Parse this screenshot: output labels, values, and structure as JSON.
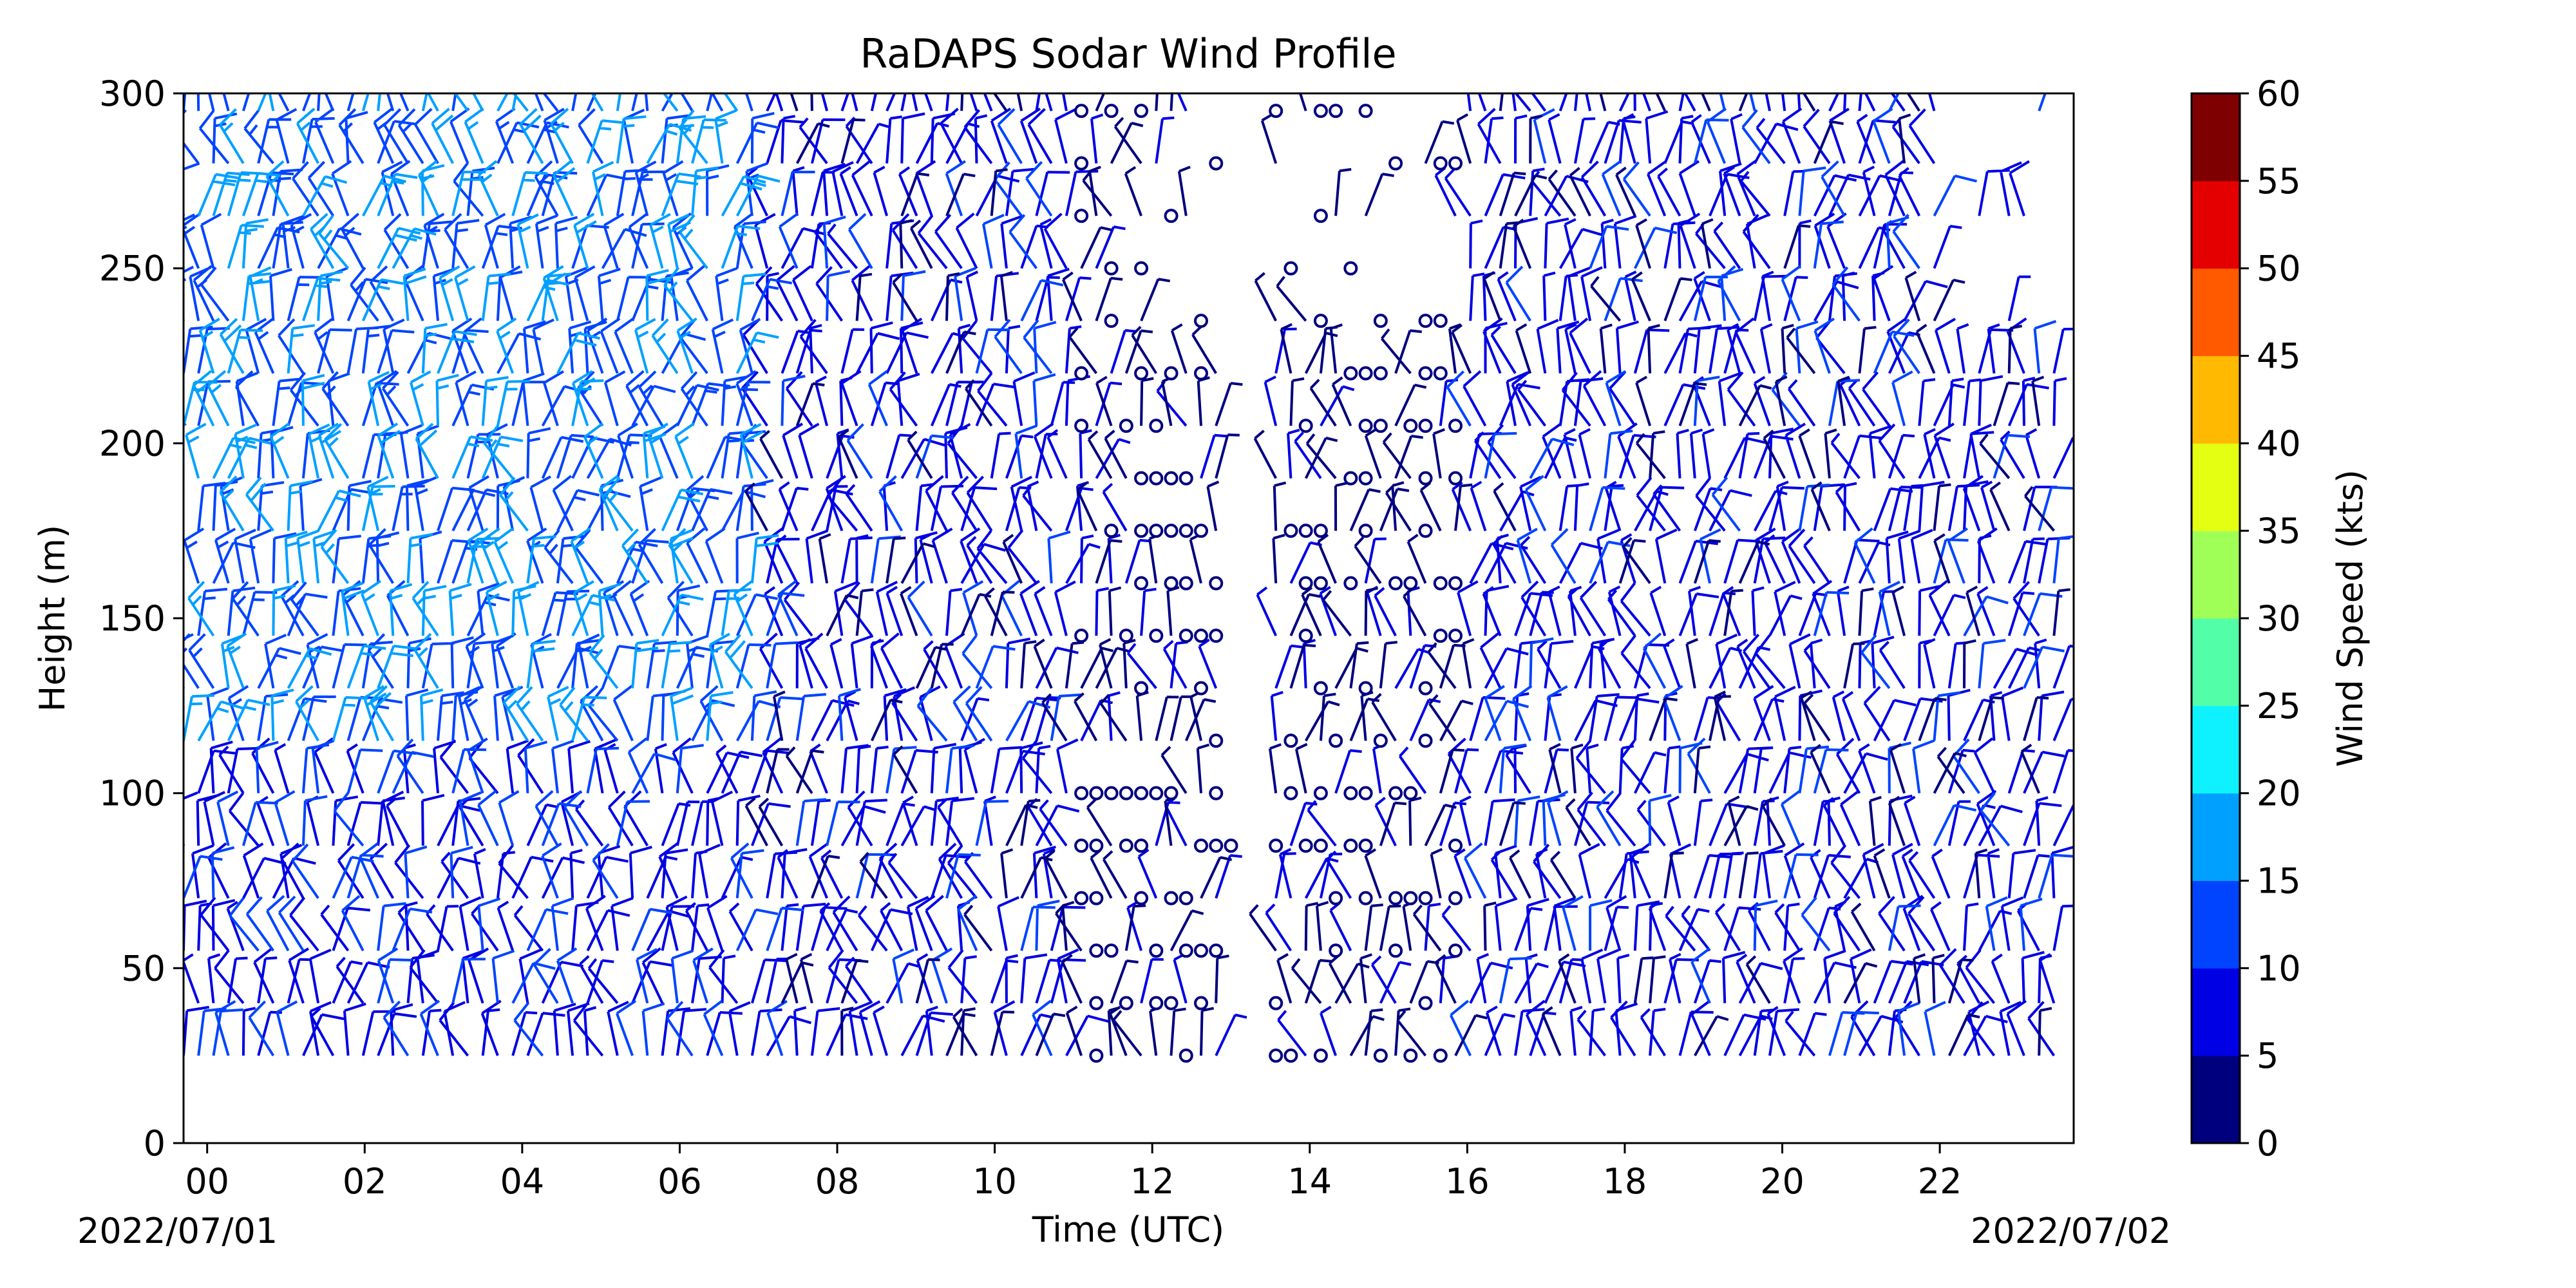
{
  "chart_data": {
    "type": "wind-barb",
    "title": "RaDAPS Sodar Wind Profile",
    "xlabel": "Time (UTC)",
    "ylabel": "Height (m)",
    "date_start": "2022/07/01",
    "date_end": "2022/07/02",
    "x_tick_labels": [
      "00",
      "02",
      "04",
      "06",
      "08",
      "10",
      "12",
      "14",
      "16",
      "18",
      "20",
      "22"
    ],
    "x_tick_hours": [
      0,
      2,
      4,
      6,
      8,
      10,
      12,
      14,
      16,
      18,
      20,
      22
    ],
    "xlim_hours": [
      -0.3,
      23.7
    ],
    "y_ticks": [
      0,
      50,
      100,
      150,
      200,
      250,
      300
    ],
    "ylim": [
      0,
      300
    ],
    "heights_m": [
      25,
      40,
      55,
      70,
      85,
      100,
      115,
      130,
      145,
      160,
      175,
      190,
      205,
      220,
      235,
      250,
      265,
      280,
      295
    ],
    "colorbar": {
      "label": "Wind Speed (kts)",
      "ticks": [
        0,
        5,
        10,
        15,
        20,
        25,
        30,
        35,
        40,
        45,
        50,
        55,
        60
      ],
      "colors": [
        "#00007f",
        "#0000e5",
        "#0044ff",
        "#00a0ff",
        "#0ef2ff",
        "#52ffa8",
        "#a0ff57",
        "#e5ff12",
        "#ffb900",
        "#ff5a00",
        "#e50000",
        "#7f0000"
      ]
    },
    "wind_barbs_note": "Field of wind barbs at each height level across the day (speeds ~0-20 kts)",
    "accent_colors": {
      "barb": "#0000e0",
      "calm_circle": "#00007f"
    }
  }
}
